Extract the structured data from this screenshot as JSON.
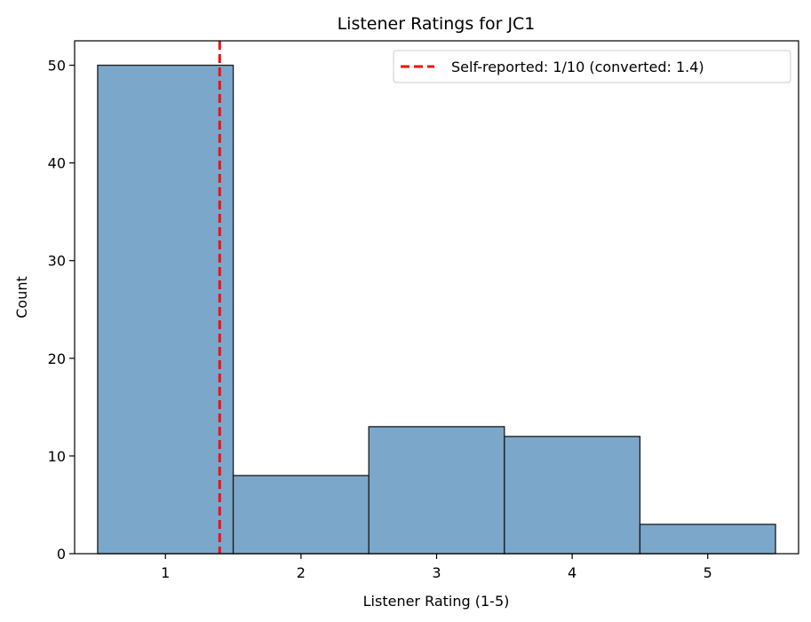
{
  "chart_data": {
    "type": "bar",
    "title": "Listener Ratings for JC1",
    "xlabel": "Listener Rating (1-5)",
    "ylabel": "Count",
    "categories": [
      "1",
      "2",
      "3",
      "4",
      "5"
    ],
    "values": [
      50,
      8,
      13,
      12,
      3
    ],
    "xlim": [
      0.33,
      5.67
    ],
    "ylim": [
      0,
      52.5
    ],
    "xticks": [
      1,
      2,
      3,
      4,
      5
    ],
    "yticks": [
      0,
      10,
      20,
      30,
      40,
      50
    ],
    "bar_color": "#7ba7cb",
    "bar_edge_color": "#1a1a1a",
    "grid": false,
    "legend_position": "top-right",
    "reference_line": {
      "x": 1.4,
      "label": "Self-reported: 1/10 (converted: 1.4)",
      "color": "#ee1111",
      "style": "dashed"
    }
  }
}
